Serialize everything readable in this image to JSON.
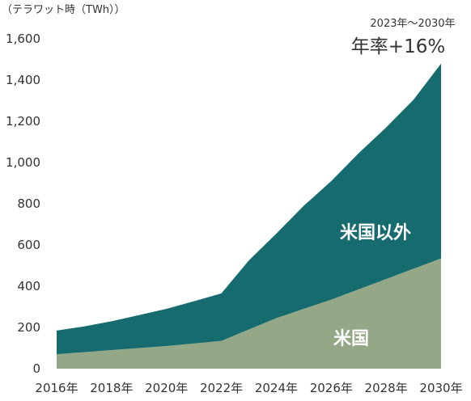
{
  "chart_data": {
    "type": "area",
    "stacked": true,
    "unit_label": "（テラワット時（TWh））",
    "annotation": {
      "period": "2023年～2030年",
      "growth": "年率+16%"
    },
    "x": [
      2016,
      2017,
      2018,
      2019,
      2020,
      2021,
      2022,
      2023,
      2024,
      2025,
      2026,
      2027,
      2028,
      2029,
      2030
    ],
    "x_tick_labels": [
      "2016年",
      "2018年",
      "2020年",
      "2022年",
      "2024年",
      "2026年",
      "2028年",
      "2030年"
    ],
    "ylim": [
      0,
      1600
    ],
    "y_ticks": [
      0,
      200,
      400,
      600,
      800,
      1000,
      1200,
      1400,
      1600
    ],
    "y_tick_labels": [
      "0",
      "200",
      "400",
      "600",
      "800",
      "1,000",
      "1,200",
      "1,400",
      "1,600"
    ],
    "grid": false,
    "legend": "none",
    "series": [
      {
        "name": "米国",
        "color": "#94a888",
        "values": [
          70,
          80,
          90,
          100,
          110,
          122,
          135,
          190,
          245,
          290,
          335,
          385,
          435,
          485,
          535
        ]
      },
      {
        "name": "米国以外",
        "color": "#156b6d",
        "values": [
          115,
          125,
          140,
          160,
          180,
          205,
          230,
          335,
          410,
          500,
          575,
          660,
          735,
          820,
          945
        ]
      }
    ]
  }
}
